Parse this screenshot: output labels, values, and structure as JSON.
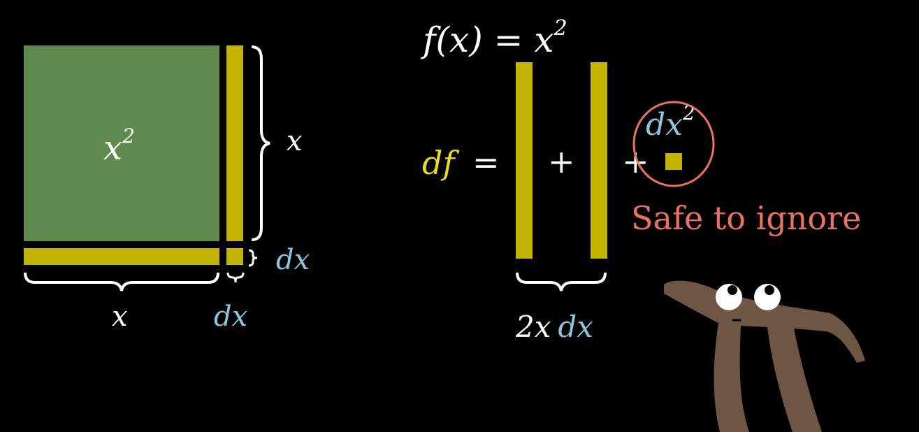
{
  "colors": {
    "background": "#000000",
    "square": "#5f8a4d",
    "strip": "#c2b400",
    "text": "#ffffff",
    "dx": "#8fc4dd",
    "df": "#e9dd22",
    "highlight": "#e97362",
    "pi_body": "#6e5544"
  },
  "square": {
    "area_label_base": "x",
    "area_label_exp": "2",
    "side_label": "x",
    "bottom_label": "x",
    "thin_right_label": "dx",
    "thin_bottom_label": "dx"
  },
  "equation": {
    "f_of_x": "f(x) = x",
    "f_exp": "2",
    "df": "df",
    "equals": "=",
    "plus_1": "+",
    "plus_2": "+",
    "dx_sq_base": "dx",
    "dx_sq_exp": "2",
    "two_x": "2x",
    "dx": "dx",
    "note": "Safe to ignore"
  },
  "icons": {
    "mascot": "pi-creature-icon"
  }
}
